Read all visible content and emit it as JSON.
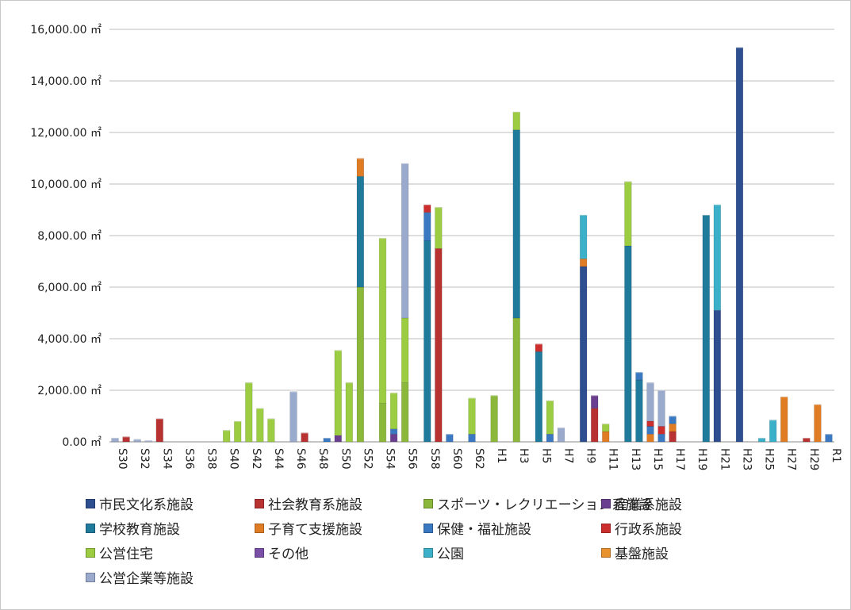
{
  "chart_data": {
    "type": "bar",
    "stacked": true,
    "title": "",
    "xlabel": "",
    "ylabel": "",
    "y_unit": "㎡",
    "ylim": [
      0,
      16000
    ],
    "y_ticks": [
      "0.00 ㎡",
      "2,000.00 ㎡",
      "4,000.00 ㎡",
      "6,000.00 ㎡",
      "8,000.00 ㎡",
      "10,000.00 ㎡",
      "12,000.00 ㎡",
      "14,000.00 ㎡",
      "16,000.00 ㎡"
    ],
    "grid": true,
    "legend_position": "bottom",
    "categories": [
      "S30",
      "S31",
      "S32",
      "S33",
      "S34",
      "S35",
      "S36",
      "S37",
      "S38",
      "S39",
      "S40",
      "S41",
      "S42",
      "S43",
      "S44",
      "S45",
      "S46",
      "S47",
      "S48",
      "S49",
      "S50",
      "S51",
      "S52",
      "S53",
      "S54",
      "S55",
      "S56",
      "S57",
      "S58",
      "S59",
      "S60",
      "S61",
      "S62",
      "S63",
      "H1",
      "H2",
      "H3",
      "H4",
      "H5",
      "H6",
      "H7",
      "H8",
      "H9",
      "H10",
      "H11",
      "H12",
      "H13",
      "H14",
      "H15",
      "H16",
      "H17",
      "H18",
      "H19",
      "H20",
      "H21",
      "H22",
      "H23",
      "H24",
      "H25",
      "H26",
      "H27",
      "H28",
      "H29",
      "H30",
      "R1"
    ],
    "x_tick_labels_shown": [
      "S30",
      "S32",
      "S34",
      "S36",
      "S38",
      "S40",
      "S42",
      "S44",
      "S46",
      "S48",
      "S50",
      "S52",
      "S54",
      "S56",
      "S58",
      "S60",
      "S62",
      "H1",
      "H3",
      "H5",
      "H7",
      "H9",
      "H11",
      "H13",
      "H15",
      "H17",
      "H19",
      "H21",
      "H23",
      "H25",
      "H27",
      "H29",
      "R1"
    ],
    "series": [
      {
        "name": "市民文化系施設",
        "color": "#2e4f8f",
        "values": [
          0,
          0,
          0,
          0,
          0,
          0,
          0,
          0,
          0,
          0,
          0,
          0,
          0,
          0,
          0,
          0,
          0,
          0,
          0,
          0,
          0,
          0,
          0,
          0,
          0,
          0,
          0,
          0,
          0,
          0,
          0,
          0,
          0,
          0,
          0,
          0,
          0,
          0,
          0,
          0,
          0,
          0,
          6800,
          0,
          0,
          0,
          0,
          0,
          0,
          0,
          0,
          0,
          0,
          0,
          5100,
          0,
          15300,
          0,
          0,
          0,
          0,
          0,
          0,
          0,
          0
        ]
      },
      {
        "name": "社会教育系施設",
        "color": "#b83232",
        "values": [
          0,
          200,
          0,
          0,
          900,
          0,
          0,
          0,
          0,
          0,
          0,
          0,
          0,
          0,
          0,
          0,
          0,
          350,
          0,
          0,
          0,
          0,
          0,
          0,
          0,
          0,
          0,
          0,
          0,
          7500,
          0,
          0,
          0,
          0,
          0,
          0,
          0,
          0,
          0,
          0,
          0,
          0,
          0,
          1300,
          0,
          0,
          0,
          0,
          0,
          0,
          400,
          0,
          0,
          0,
          0,
          0,
          0,
          0,
          0,
          0,
          0,
          0,
          150,
          0,
          0
        ]
      },
      {
        "name": "スポーツ・レクリエーション系施設",
        "color": "#8bb83a",
        "values": [
          0,
          0,
          0,
          0,
          0,
          0,
          0,
          0,
          0,
          0,
          0,
          0,
          0,
          0,
          0,
          0,
          0,
          0,
          0,
          0,
          0,
          0,
          6000,
          0,
          1500,
          0,
          2300,
          0,
          0,
          0,
          0,
          0,
          0,
          0,
          1800,
          0,
          4800,
          0,
          0,
          0,
          0,
          0,
          0,
          0,
          0,
          0,
          0,
          0,
          0,
          0,
          0,
          0,
          0,
          0,
          0,
          0,
          0,
          0,
          0,
          0,
          0,
          0,
          0,
          0,
          0
        ]
      },
      {
        "name": "産業系施設",
        "color": "#6a3f8f",
        "values": [
          0,
          0,
          0,
          0,
          0,
          0,
          0,
          0,
          0,
          0,
          0,
          0,
          0,
          0,
          0,
          0,
          0,
          0,
          0,
          0,
          250,
          0,
          0,
          0,
          0,
          300,
          0,
          0,
          0,
          0,
          0,
          0,
          0,
          0,
          0,
          0,
          0,
          0,
          0,
          0,
          0,
          0,
          0,
          500,
          0,
          0,
          0,
          0,
          0,
          0,
          0,
          0,
          0,
          0,
          0,
          0,
          0,
          0,
          0,
          0,
          0,
          0,
          0,
          0,
          0
        ]
      },
      {
        "name": "学校教育施設",
        "color": "#1f7a9c",
        "values": [
          0,
          0,
          0,
          0,
          0,
          0,
          0,
          0,
          0,
          0,
          0,
          0,
          0,
          0,
          0,
          0,
          0,
          0,
          0,
          0,
          0,
          0,
          4300,
          0,
          0,
          0,
          0,
          0,
          7800,
          0,
          0,
          0,
          0,
          0,
          0,
          0,
          7300,
          0,
          3500,
          0,
          0,
          0,
          0,
          0,
          0,
          0,
          7600,
          2400,
          0,
          0,
          0,
          0,
          0,
          8800,
          0,
          0,
          0,
          0,
          0,
          0,
          0,
          0,
          0,
          0,
          0
        ]
      },
      {
        "name": "子育て支援施設",
        "color": "#e07c24",
        "values": [
          0,
          0,
          0,
          0,
          0,
          0,
          0,
          0,
          0,
          0,
          0,
          0,
          0,
          0,
          0,
          0,
          0,
          0,
          0,
          0,
          0,
          0,
          700,
          0,
          0,
          0,
          0,
          0,
          0,
          0,
          0,
          0,
          0,
          0,
          0,
          0,
          0,
          0,
          0,
          0,
          0,
          0,
          300,
          0,
          400,
          0,
          0,
          0,
          300,
          0,
          300,
          0,
          0,
          0,
          0,
          0,
          0,
          0,
          0,
          0,
          1750,
          0,
          0,
          1450,
          0
        ]
      },
      {
        "name": "保健・福祉施設",
        "color": "#3a78c2",
        "values": [
          0,
          0,
          0,
          0,
          0,
          0,
          0,
          0,
          0,
          0,
          0,
          0,
          0,
          0,
          0,
          0,
          0,
          0,
          0,
          150,
          0,
          0,
          0,
          0,
          0,
          200,
          0,
          0,
          1100,
          0,
          300,
          0,
          300,
          0,
          0,
          0,
          0,
          0,
          0,
          300,
          0,
          0,
          0,
          0,
          0,
          0,
          0,
          300,
          300,
          300,
          300,
          0,
          0,
          0,
          0,
          0,
          0,
          0,
          0,
          0,
          0,
          0,
          0,
          0,
          300
        ]
      },
      {
        "name": "行政系施設",
        "color": "#cc2e2e",
        "values": [
          0,
          0,
          0,
          0,
          0,
          0,
          0,
          0,
          0,
          0,
          0,
          0,
          0,
          0,
          0,
          0,
          0,
          0,
          0,
          0,
          0,
          0,
          0,
          0,
          0,
          0,
          0,
          0,
          300,
          0,
          0,
          0,
          0,
          0,
          0,
          0,
          0,
          0,
          300,
          0,
          0,
          0,
          0,
          0,
          0,
          0,
          0,
          0,
          200,
          300,
          0,
          0,
          0,
          0,
          0,
          0,
          0,
          0,
          0,
          0,
          0,
          0,
          0,
          0,
          0
        ]
      },
      {
        "name": "公営住宅",
        "color": "#9ccc42",
        "values": [
          0,
          0,
          0,
          0,
          0,
          0,
          0,
          0,
          0,
          0,
          450,
          800,
          2300,
          1300,
          900,
          0,
          0,
          0,
          0,
          0,
          3300,
          2300,
          0,
          0,
          6400,
          1400,
          2500,
          0,
          0,
          1600,
          0,
          0,
          1400,
          0,
          0,
          0,
          700,
          0,
          0,
          1300,
          0,
          0,
          0,
          0,
          300,
          0,
          2500,
          0,
          0,
          0,
          0,
          0,
          0,
          0,
          0,
          0,
          0,
          0,
          0,
          0,
          0,
          0,
          0,
          0,
          0
        ]
      },
      {
        "name": "その他",
        "color": "#7a4fa8",
        "values": [
          0,
          0,
          0,
          0,
          0,
          0,
          0,
          0,
          0,
          0,
          0,
          0,
          0,
          0,
          0,
          0,
          0,
          0,
          0,
          0,
          0,
          0,
          0,
          0,
          0,
          0,
          0,
          0,
          0,
          0,
          0,
          0,
          0,
          0,
          0,
          0,
          0,
          0,
          0,
          0,
          0,
          0,
          0,
          0,
          0,
          0,
          0,
          0,
          0,
          0,
          0,
          0,
          0,
          0,
          0,
          0,
          0,
          0,
          0,
          0,
          0,
          0,
          0,
          0,
          0
        ]
      },
      {
        "name": "公園",
        "color": "#3cb0c8",
        "values": [
          0,
          0,
          0,
          0,
          0,
          0,
          0,
          0,
          0,
          0,
          0,
          0,
          0,
          0,
          0,
          0,
          0,
          0,
          0,
          0,
          0,
          0,
          0,
          0,
          0,
          0,
          0,
          0,
          0,
          0,
          0,
          0,
          0,
          0,
          0,
          0,
          0,
          0,
          0,
          0,
          0,
          0,
          1700,
          0,
          0,
          0,
          0,
          0,
          0,
          0,
          0,
          0,
          0,
          0,
          4100,
          0,
          0,
          0,
          150,
          850,
          0,
          0,
          0,
          0,
          0
        ]
      },
      {
        "name": "基盤施設",
        "color": "#e8922e",
        "values": [
          0,
          0,
          0,
          0,
          0,
          0,
          0,
          0,
          0,
          0,
          0,
          0,
          0,
          0,
          0,
          0,
          0,
          0,
          0,
          0,
          0,
          0,
          0,
          0,
          0,
          0,
          0,
          0,
          0,
          0,
          0,
          0,
          0,
          0,
          0,
          0,
          0,
          0,
          0,
          0,
          0,
          0,
          0,
          0,
          0,
          0,
          0,
          0,
          0,
          0,
          0,
          0,
          0,
          0,
          0,
          0,
          0,
          0,
          0,
          0,
          0,
          0,
          0,
          0,
          0
        ]
      },
      {
        "name": "公営企業等施設",
        "color": "#9aaacc",
        "values": [
          150,
          0,
          100,
          50,
          0,
          0,
          0,
          0,
          0,
          0,
          0,
          0,
          0,
          0,
          0,
          0,
          1950,
          0,
          0,
          0,
          0,
          0,
          0,
          0,
          0,
          0,
          6000,
          0,
          0,
          0,
          0,
          0,
          0,
          0,
          0,
          0,
          0,
          0,
          0,
          0,
          550,
          0,
          0,
          0,
          0,
          0,
          0,
          0,
          1500,
          1400,
          0,
          0,
          0,
          0,
          0,
          0,
          0,
          0,
          0,
          0,
          0,
          0,
          0,
          0,
          0
        ]
      }
    ],
    "bar_colors_by_category": {
      "S55": "#6a3f8f",
      "S56": "#9aaacc",
      "S57": "#8bb83a",
      "H3": "#8bb83a",
      "H5": "#8bb83a",
      "H9": "#2e4f8f",
      "H10": "#cc2e2e",
      "H13": "#1f7a9c"
    }
  },
  "legend": {
    "items": [
      {
        "label": "市民文化系施設",
        "color": "#2e4f8f"
      },
      {
        "label": "社会教育系施設",
        "color": "#b83232"
      },
      {
        "label": "スポーツ・レクリエーション系施設",
        "color": "#8bb83a"
      },
      {
        "label": "産業系施設",
        "color": "#6a3f8f"
      },
      {
        "label": "学校教育施設",
        "color": "#1f7a9c"
      },
      {
        "label": "子育て支援施設",
        "color": "#e07c24"
      },
      {
        "label": "保健・福祉施設",
        "color": "#3a78c2"
      },
      {
        "label": "行政系施設",
        "color": "#cc2e2e"
      },
      {
        "label": "公営住宅",
        "color": "#9ccc42"
      },
      {
        "label": "その他",
        "color": "#7a4fa8"
      },
      {
        "label": "公園",
        "color": "#3cb0c8"
      },
      {
        "label": "基盤施設",
        "color": "#e8922e"
      },
      {
        "label": "公営企業等施設",
        "color": "#9aaacc"
      }
    ]
  }
}
